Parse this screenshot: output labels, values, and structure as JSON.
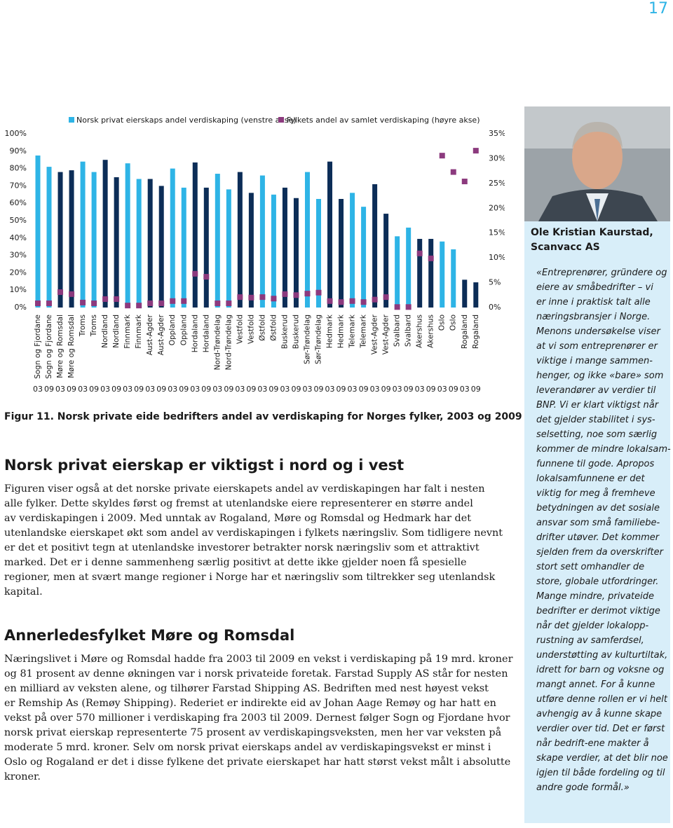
{
  "page_number": "17",
  "chart_data": {
    "type": "bar",
    "categories": [
      "Sogn og Fjordane",
      "Sogn og Fjordane",
      "Møre og Romsdal",
      "Møre og Romsdal",
      "Troms",
      "Troms",
      "Nordland",
      "Nordland",
      "Finnmark",
      "Finnmark",
      "Aust-Agder",
      "Aust-Agder",
      "Oppland",
      "Oppland",
      "Hordaland",
      "Hordaland",
      "Nord-Trøndelag",
      "Nord-Trøndelag",
      "Vestfold",
      "Vestfold",
      "Østfold",
      "Østfold",
      "Buskerud",
      "Buskerud",
      "Sør-Trøndelag",
      "Sør-Trøndelag",
      "Hedmark",
      "Hedmark",
      "Telemark",
      "Telemark",
      "Vest-Agder",
      "Vest-Agder",
      "Svalbard",
      "Svalbard",
      "Akershus",
      "Akershus",
      "Oslo",
      "Oslo",
      "Rogaland",
      "Rogaland"
    ],
    "years": [
      "03",
      "09",
      "03",
      "09",
      "03",
      "09",
      "03",
      "09",
      "03",
      "09",
      "03",
      "09",
      "03",
      "09",
      "03",
      "09",
      "03",
      "09",
      "03",
      "09",
      "03",
      "09",
      "03",
      "09",
      "03",
      "09",
      "03",
      "09",
      "03",
      "09",
      "03",
      "09",
      "03",
      "09",
      "03",
      "09",
      "03",
      "09",
      "03",
      "09"
    ],
    "series": [
      {
        "name": "Norsk privat eierskaps andel verdiskaping (venstre akse)",
        "color": "#2eb4e6",
        "alt_color": "#0c2d57",
        "values": [
          87.5,
          81,
          78,
          79,
          84,
          78,
          85,
          75,
          83,
          74,
          74,
          70,
          80,
          69,
          83.5,
          69,
          77,
          68,
          78,
          66,
          76,
          65,
          69,
          63,
          78,
          62.5,
          84,
          62.5,
          66,
          58,
          71,
          54,
          41,
          46,
          39.5,
          39.5,
          38,
          33.5,
          16,
          14.5
        ]
      },
      {
        "name": "Fylkets andel av samlet verdiskaping (høyre akse)",
        "color": "#8c3a7e",
        "axis": "y2",
        "values": [
          0.85,
          0.85,
          3.1,
          2.7,
          1.0,
          0.85,
          1.7,
          1.7,
          0.4,
          0.4,
          0.85,
          0.85,
          1.3,
          1.3,
          6.8,
          6.2,
          0.85,
          0.85,
          2.1,
          2.0,
          2.1,
          1.8,
          2.7,
          2.5,
          2.8,
          3.0,
          1.3,
          1.1,
          1.3,
          1.1,
          1.6,
          2.1,
          0.1,
          0.1,
          10.9,
          9.9,
          30.6,
          27.3,
          25.4,
          31.6
        ]
      }
    ],
    "ylim": [
      0,
      100
    ],
    "yticks": [
      {
        "value": 0,
        "label": "0%"
      },
      {
        "value": 10,
        "label": "10%"
      },
      {
        "value": 20,
        "label": "20%"
      },
      {
        "value": 30,
        "label": "30%"
      },
      {
        "value": 40,
        "label": "40%"
      },
      {
        "value": 50,
        "label": "50%"
      },
      {
        "value": 60,
        "label": "60%"
      },
      {
        "value": 70,
        "label": "70%"
      },
      {
        "value": 80,
        "label": "80%"
      },
      {
        "value": 90,
        "label": "90%"
      },
      {
        "value": 100,
        "label": "100%"
      }
    ],
    "y2lim": [
      0,
      35
    ],
    "y2ticks": [
      {
        "value": 0,
        "label": "0%"
      },
      {
        "value": 5,
        "label": "5%"
      },
      {
        "value": 10,
        "label": "10%"
      },
      {
        "value": 15,
        "label": "15%"
      },
      {
        "value": 20,
        "label": "20%"
      },
      {
        "value": 25,
        "label": "25%"
      },
      {
        "value": 30,
        "label": "30%"
      },
      {
        "value": 35,
        "label": "35%"
      }
    ],
    "grid": false,
    "caption": "Figur 11. Norsk private eide bedrifters andel av verdiskaping for Norges fylker, 2003 og 2009"
  },
  "article": {
    "heading": "Norsk privat eierskap er viktigst i nord og i vest",
    "paragraph1": [
      "Figuren viser også at det norske private eierskapets andel av verdiskapingen har falt i nesten",
      "alle fylker. Dette skyldes først og fremst at utenlandske eiere representerer en større andel",
      "av verdiskapingen i 2009. Med unntak av Rogaland, Møre og Romsdal og Hedmark har det",
      "utenlandske eierskapet økt som andel av verdiskapingen i fylkets næringsliv. Som tidligere nevnt",
      "er det et positivt tegn at utenlandske investorer betrakter norsk næringsliv som et attraktivt",
      "marked. Det er i denne sammenheng særlig positivt at dette ikke gjelder noen få spesielle",
      "regioner, men at svært mange regioner i Norge har et næringsliv som tiltrekker seg utenlandsk",
      "kapital."
    ],
    "subheading": "Annerledesfylket Møre og Romsdal",
    "paragraph2": [
      "Næringslivet i Møre og Romsdal hadde fra 2003 til 2009 en vekst i verdiskaping på 19 mrd. kroner",
      "og 81 prosent av denne økningen var i norsk privateide foretak. Farstad Supply AS står for nesten",
      "en milliard av veksten alene, og tilhører Farstad Shipping AS. Bedriften med nest høyest vekst",
      "er Remship As (Remøy Shipping). Rederiet er indirekte eid av Johan Aage Remøy og har hatt en",
      "vekst på over 570 millioner i verdiskaping fra 2003 til 2009. Dernest følger Sogn og Fjordane hvor",
      "norsk privat eierskap representerte 75 prosent av verdiskapingsveksten, men her var veksten på",
      "moderate 5 mrd. kroner. Selv om norsk privat eierskaps andel av verdiskapingsvekst er minst i",
      "Oslo og Rogaland er det i disse fylkene det private eierskapet har hatt størst vekst målt i absolutte",
      "kroner."
    ]
  },
  "sidebar": {
    "name": "Ole Kristian Kaurstad,",
    "company": "Scanvacc AS",
    "quote": [
      "«Entreprenører, gründere og",
      "eiere av småbedrifter – vi",
      "er inne i praktisk talt alle",
      "næringsbransjer i Norge.",
      "Menons undersøkelse viser",
      "at vi som entreprenører er",
      "viktige i mange sammen-",
      "henger, og ikke «bare» som",
      "leverandører av verdier til",
      "BNP. Vi er klart viktigst når",
      "det gjelder stabilitet i sys-",
      "selsetting, noe som særlig",
      "kommer de mindre lokalsam-",
      "funnene til gode. Apropos",
      "lokalsamfunnene er det",
      "viktig for meg å fremheve",
      "betydningen av det sosiale",
      "ansvar som små familiebe-",
      "drifter utøver. Det kommer",
      "sjelden frem da overskrifter",
      "stort sett omhandler de",
      "store, globale utfordringer.",
      "Mange mindre, privateide",
      "bedrifter er derimot viktige",
      "når det gjelder lokalopp-",
      "rustning av samferdsel,",
      "understøtting av kulturtiltak,",
      "idrett for barn og voksne og",
      "mangt annet. For å kunne",
      "utføre denne rollen er vi helt",
      "avhengig av å kunne skape",
      "verdier over tid. Det er først",
      "når bedrift-ene makter å",
      "skape verdier, at det blir noe",
      "igjen til både fordeling og til",
      "andre gode formål.»"
    ]
  }
}
